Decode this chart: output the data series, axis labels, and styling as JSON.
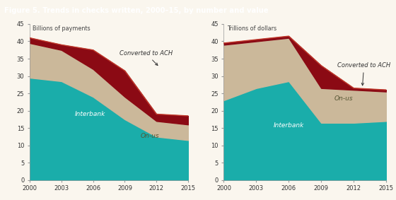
{
  "title": "Figure 5. Trends in checks written, 2000–15, by number and value",
  "title_bg": "#3aafa9",
  "background": "#faf6ee",
  "years": [
    2000,
    2003,
    2006,
    2009,
    2012,
    2015
  ],
  "left_ylabel": "Billions of payments",
  "left_interbank": [
    29.5,
    28.5,
    24.0,
    17.5,
    12.5,
    11.5
  ],
  "left_onus": [
    10.0,
    9.0,
    8.0,
    6.5,
    4.5,
    4.5
  ],
  "left_ach": [
    1.5,
    1.5,
    5.5,
    7.5,
    2.0,
    2.5
  ],
  "right_ylabel": "Trillions of dollars",
  "right_interbank": [
    23.0,
    26.5,
    28.5,
    16.5,
    16.5,
    17.0
  ],
  "right_onus": [
    16.0,
    13.5,
    12.5,
    10.0,
    9.5,
    8.5
  ],
  "right_ach": [
    0.5,
    0.5,
    0.5,
    6.5,
    0.5,
    0.5
  ],
  "color_interbank": "#1aadaa",
  "color_onus": "#cbb89a",
  "color_ach": "#8b0a14",
  "color_total_line": "#c0392b",
  "ylim": [
    0,
    45
  ],
  "yticks": [
    0,
    5,
    10,
    15,
    20,
    25,
    30,
    35,
    40,
    45
  ]
}
